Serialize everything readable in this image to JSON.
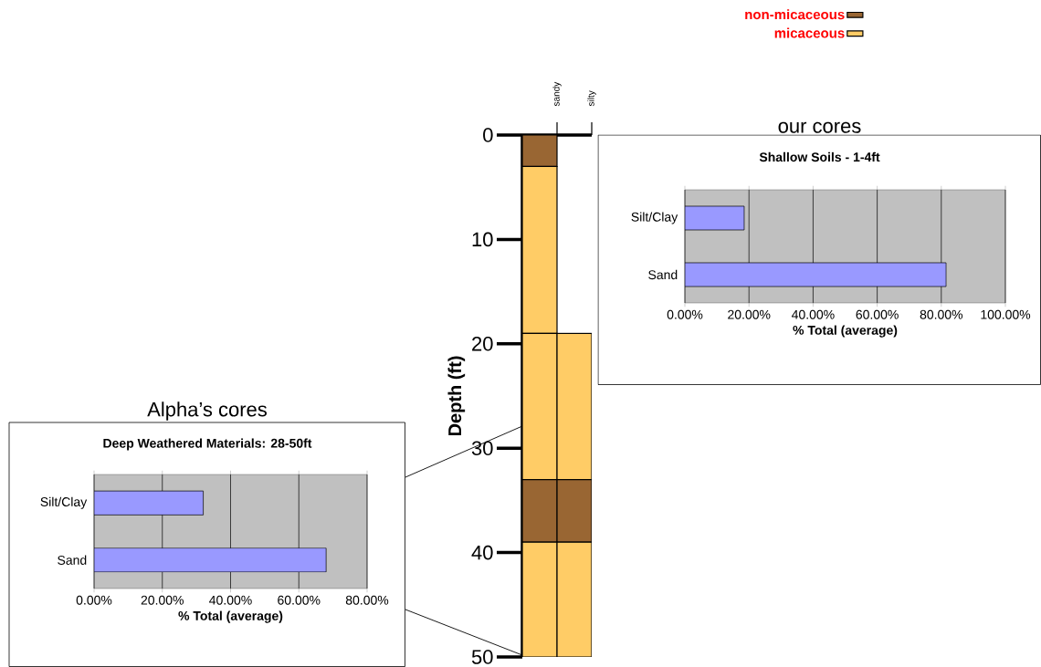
{
  "chart_data": [
    {
      "type": "bar",
      "categories": [
        "sandy",
        "silty"
      ],
      "ylim": [
        50,
        0
      ],
      "yticks": [
        0,
        10,
        20,
        30,
        40,
        50
      ],
      "ylabel": "Depth (ft)",
      "legend": "top right",
      "series": [
        {
          "name": "non-micaceous",
          "color": "#996633",
          "values": [
            3,
            null
          ],
          "base": [
            0,
            null
          ]
        },
        {
          "name": "micaceous",
          "color": "#ffcc66",
          "values": [
            16,
            null
          ],
          "base": [
            3,
            null
          ]
        },
        {
          "color": "#ffcc66",
          "values": [
            14,
            14
          ],
          "base": [
            19,
            19
          ]
        },
        {
          "color": "#996633",
          "values": [
            6,
            6
          ],
          "base": [
            33,
            33
          ]
        },
        {
          "color": "#ffcc66",
          "values": [
            11,
            11
          ],
          "base": [
            39,
            39
          ]
        }
      ]
    },
    {
      "type": "bar",
      "orientation": "horizontal",
      "title": "our cores",
      "subtitle": "Shallow Soils - 1-4ft",
      "xlabel": "% Total (average)",
      "categories": [
        "Silt/Clay",
        "Sand"
      ],
      "values": [
        18.5,
        81.5
      ],
      "color": "#9999ff",
      "xlim": [
        0,
        100
      ],
      "grid": "x",
      "xticks": [
        {
          "value": 0,
          "label": "0.00%"
        },
        {
          "value": 20,
          "label": "20.00%"
        },
        {
          "value": 40,
          "label": "40.00%"
        },
        {
          "value": 60,
          "label": "60.00%"
        },
        {
          "value": 80,
          "label": "80.00%"
        },
        {
          "value": 100,
          "label": "100.00%"
        }
      ]
    },
    {
      "type": "bar",
      "orientation": "horizontal",
      "title": "Alpha’s cores",
      "subtitle": "Deep Weathered Materials: 28-50ft",
      "xlabel": "% Total (average)",
      "categories": [
        "Silt/Clay",
        "Sand"
      ],
      "values": [
        32,
        68
      ],
      "color": "#9999ff",
      "xlim": [
        0,
        80
      ],
      "grid": "x",
      "xticks": [
        {
          "value": 0,
          "label": "0.00%"
        },
        {
          "value": 20,
          "label": "20.00%"
        },
        {
          "value": 40,
          "label": "40.00%"
        },
        {
          "value": 60,
          "label": "60.00%"
        },
        {
          "value": 80,
          "label": "80.00%"
        }
      ]
    }
  ]
}
